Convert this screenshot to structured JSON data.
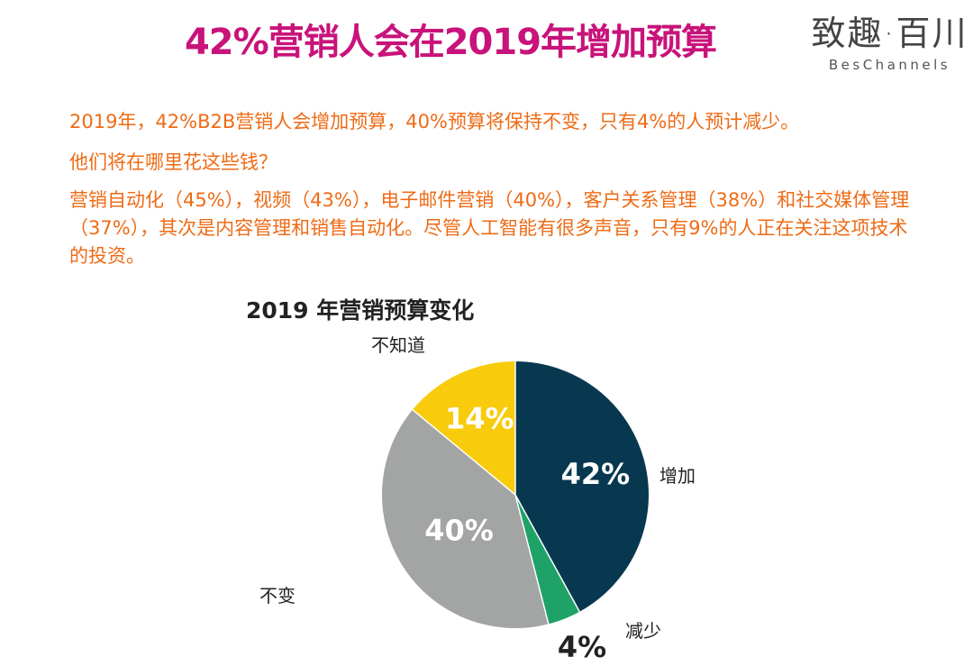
{
  "header": {
    "title": "42%营销人会在2019年增加预算",
    "brand_cn": "致趣·百川",
    "brand_en": "BesChannels"
  },
  "body": {
    "p1": "2019年，42%B2B营销人会增加预算，40%预算将保持不变，只有4%的人预计减少。",
    "p2": "他们将在哪里花这些钱？",
    "p3": "营销自动化（45%），视频（43%），电子邮件营销（40%），客户关系管理（38%）和社交媒体管理（37%），其次是内容管理和销售自动化。尽管人工智能有很多声音，只有9%的人正在关注这项技术的投资。"
  },
  "chart_data": {
    "type": "pie",
    "title": "2019 年营销预算变化",
    "slices": [
      {
        "label": "增加",
        "value": 42,
        "display": "42%",
        "color": "#07384f"
      },
      {
        "label": "减少",
        "value": 4,
        "display": "4%",
        "color": "#1fa268"
      },
      {
        "label": "不变",
        "value": 40,
        "display": "40%",
        "color": "#a3a4a4"
      },
      {
        "label": "不知道",
        "value": 14,
        "display": "14%",
        "color": "#f8cb0c"
      }
    ],
    "start": "12 o'clock",
    "direction": "clockwise"
  }
}
